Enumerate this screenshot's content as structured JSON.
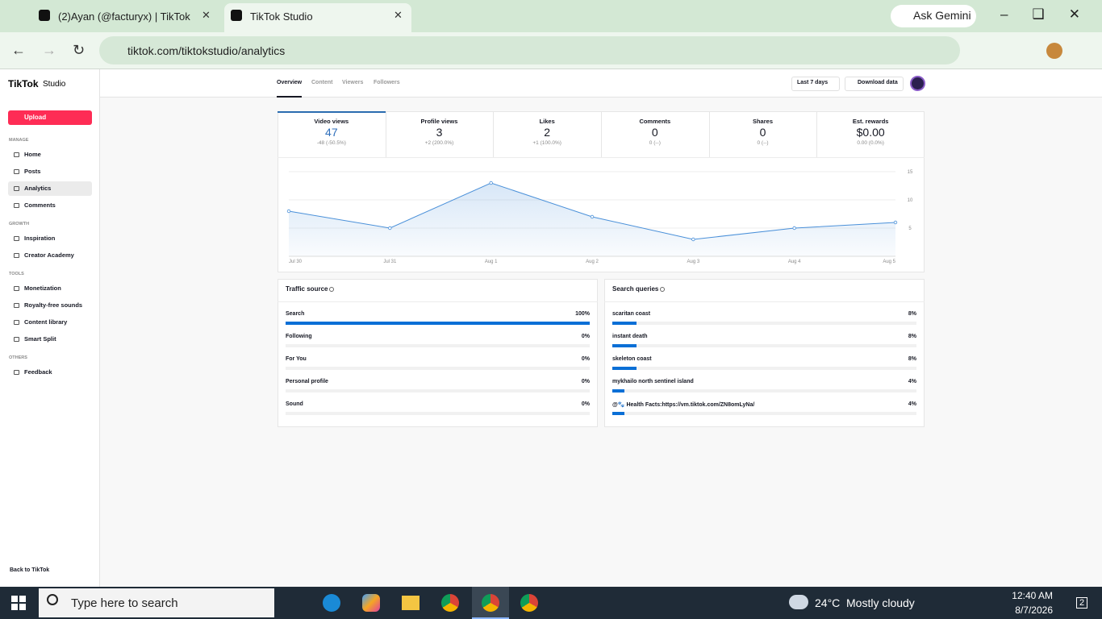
{
  "browser": {
    "tabs": [
      "(2)Ayan (@facturyx) | TikTok",
      "TikTok Studio"
    ],
    "ask_gemini": "Ask Gemini",
    "url": "tiktok.com/tiktokstudio/analytics"
  },
  "sidebar": {
    "logo": "TikTok",
    "logo_suffix": "Studio",
    "upload": "Upload",
    "sections": [
      {
        "title": "MANAGE",
        "items": [
          "Home",
          "Posts",
          "Analytics",
          "Comments"
        ]
      },
      {
        "title": "GROWTH",
        "items": [
          "Inspiration",
          "Creator Academy"
        ]
      },
      {
        "title": "TOOLS",
        "items": [
          "Monetization",
          "Royalty-free sounds",
          "Content library",
          "Smart Split"
        ]
      },
      {
        "title": "OTHERS",
        "items": [
          "Feedback"
        ]
      }
    ],
    "back": "Back to TikTok"
  },
  "header": {
    "tabs": [
      "Overview",
      "Content",
      "Viewers",
      "Followers"
    ],
    "range": "Last 7 days",
    "download": "Download data"
  },
  "metrics": [
    {
      "label": "Video views",
      "value": 47,
      "change": "-48 (-50.5%)"
    },
    {
      "label": "Profile views",
      "value": 3,
      "change": "+2 (200.0%)"
    },
    {
      "label": "Likes",
      "value": 2,
      "change": "+1 (100.0%)"
    },
    {
      "label": "Comments",
      "value": 0,
      "change": "0 (--)"
    },
    {
      "label": "Shares",
      "value": 0,
      "change": "0 (--)"
    },
    {
      "label": "Est. rewards",
      "value": "$0.00",
      "change": "0.00 (0.0%)"
    }
  ],
  "chart_data": {
    "type": "line",
    "categories": [
      "Jul 30",
      "Jul 31",
      "Aug 1",
      "Aug 2",
      "Aug 3",
      "Aug 4",
      "Aug 5"
    ],
    "values": [
      8,
      5,
      13,
      7,
      3,
      5,
      6
    ],
    "color": "#4a90d9",
    "ylim": [
      0,
      15
    ],
    "yticks": [
      5,
      10,
      15
    ],
    "grid": true
  },
  "traffic_source": {
    "title": "Traffic source",
    "rows": [
      {
        "name": "Search",
        "value": 100,
        "label": "100%"
      },
      {
        "name": "Following",
        "value": 0,
        "label": "0%"
      },
      {
        "name": "For You",
        "value": 0,
        "label": "0%"
      },
      {
        "name": "Personal profile",
        "value": 0,
        "label": "0%"
      },
      {
        "name": "Sound",
        "value": 0,
        "label": "0%"
      }
    ]
  },
  "search_queries": {
    "title": "Search queries",
    "rows": [
      {
        "name": "scaritan coast",
        "value": 8,
        "label": "8%"
      },
      {
        "name": "instant death",
        "value": 8,
        "label": "8%"
      },
      {
        "name": "skeleton coast",
        "value": 8,
        "label": "8%"
      },
      {
        "name": "mykhailo north sentinel island",
        "value": 4,
        "label": "4%"
      },
      {
        "name": "@🐾 Health Facts:https://vm.tiktok.com/ZN8omLyNa/",
        "value": 4,
        "label": "4%"
      }
    ]
  },
  "taskbar": {
    "search": "Type here to search",
    "temperature": "24°C",
    "weather": "Mostly cloudy",
    "time": "12:40 AM",
    "date": "8/7/2026",
    "notifications": "2"
  }
}
